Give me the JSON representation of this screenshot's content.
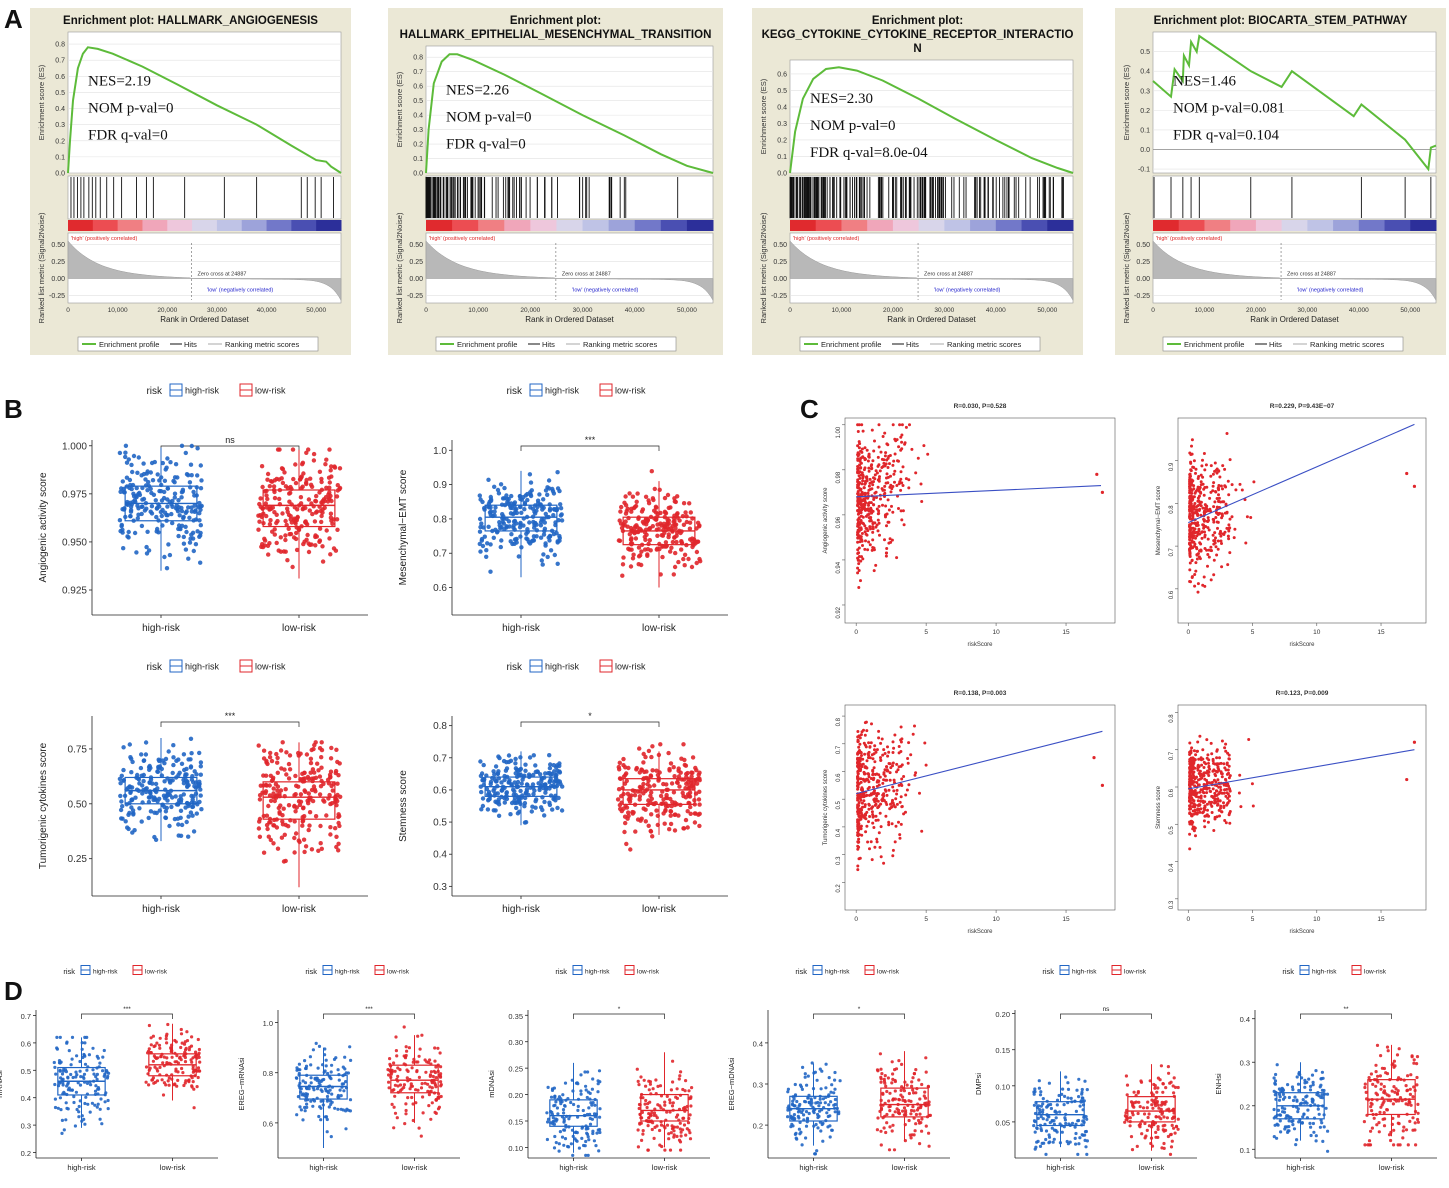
{
  "panel_labels": [
    "A",
    "B",
    "C",
    "D"
  ],
  "colors": {
    "high": "#2166c4",
    "low": "#e0262b",
    "profile": "#5dbb3a",
    "panel_bg": "#ebe8d6",
    "fit_line": "#3a4fc4",
    "scatter": "#e0262b"
  },
  "gsea_common": {
    "es_ylabel": "Enrichment score (ES)",
    "metric_ylabel": "Ranked list metric (Signal2Noise)",
    "xlabel": "Rank in Ordered Dataset",
    "high_label": "'high' (positively correlated)",
    "low_label": "'low' (negatively correlated)",
    "zero_cross": "Zero cross at 24887",
    "legend": [
      "Enrichment profile",
      "Hits",
      "Ranking metric scores"
    ],
    "x_ticks": [
      "0",
      "10,000",
      "20,000",
      "30,000",
      "40,000",
      "50,000"
    ],
    "metric_ticks": [
      "0.50",
      "0.25",
      "0.00",
      "-0.25"
    ],
    "zero_cross_rank": 24887,
    "max_rank": 55000
  },
  "chart_data": [
    {
      "type": "line",
      "panel": "A",
      "title_lines": [
        "Enrichment plot: HALLMARK_ANGIOGENESIS"
      ],
      "nes": "NES=2.19",
      "nom": "NOM p-val=0",
      "fdr": "FDR q-val=0",
      "y_ticks": [
        "0.8",
        "0.7",
        "0.6",
        "0.5",
        "0.4",
        "0.3",
        "0.2",
        "0.1",
        "0.0"
      ],
      "ylim": [
        0,
        0.85
      ],
      "es_profile": [
        [
          0,
          0
        ],
        [
          400,
          0.2
        ],
        [
          1000,
          0.45
        ],
        [
          2000,
          0.65
        ],
        [
          3000,
          0.74
        ],
        [
          4000,
          0.78
        ],
        [
          6000,
          0.77
        ],
        [
          9000,
          0.74
        ],
        [
          15000,
          0.66
        ],
        [
          22000,
          0.55
        ],
        [
          30000,
          0.42
        ],
        [
          38000,
          0.3
        ],
        [
          45000,
          0.17
        ],
        [
          50000,
          0.08
        ],
        [
          52000,
          0.07
        ],
        [
          53000,
          0.04
        ],
        [
          55000,
          0
        ]
      ],
      "hits": [
        600,
        1200,
        1900,
        2600,
        3200,
        4200,
        4900,
        5600,
        6500,
        7800,
        9200,
        10800,
        13800,
        15800,
        17200,
        23500,
        31500,
        38000,
        47000,
        48200,
        49800,
        51000,
        53500
      ],
      "nes_value": 2.19,
      "nom_p": 0,
      "fdr_q": 0
    },
    {
      "type": "line",
      "panel": "A",
      "title_lines": [
        "Enrichment plot:",
        "HALLMARK_EPITHELIAL_MESENCHYMAL_TRANSITION"
      ],
      "nes": "NES=2.26",
      "nom": "NOM p-val=0",
      "fdr": "FDR q-val=0",
      "y_ticks": [
        "0.8",
        "0.7",
        "0.6",
        "0.5",
        "0.4",
        "0.3",
        "0.2",
        "0.1",
        "0.0"
      ],
      "ylim": [
        0,
        0.85
      ],
      "es_profile": [
        [
          0,
          0
        ],
        [
          500,
          0.3
        ],
        [
          1500,
          0.62
        ],
        [
          3000,
          0.77
        ],
        [
          4500,
          0.82
        ],
        [
          6000,
          0.82
        ],
        [
          9000,
          0.78
        ],
        [
          15000,
          0.68
        ],
        [
          22000,
          0.55
        ],
        [
          30000,
          0.4
        ],
        [
          38000,
          0.26
        ],
        [
          45000,
          0.13
        ],
        [
          50000,
          0.05
        ],
        [
          55000,
          0
        ]
      ],
      "hits": "dense-early",
      "nes_value": 2.26,
      "nom_p": 0,
      "fdr_q": 0
    },
    {
      "type": "line",
      "panel": "A",
      "title_lines": [
        "Enrichment plot:",
        "KEGG_CYTOKINE_CYTOKINE_RECEPTOR_INTERACTIO",
        "N"
      ],
      "nes": "NES=2.30",
      "nom": "NOM p-val=0",
      "fdr": "FDR q-val=8.0e-04",
      "y_ticks": [
        "0.6",
        "0.5",
        "0.4",
        "0.3",
        "0.2",
        "0.1",
        "0.0"
      ],
      "ylim": [
        0,
        0.66
      ],
      "es_profile": [
        [
          0,
          0
        ],
        [
          1000,
          0.25
        ],
        [
          2500,
          0.45
        ],
        [
          4500,
          0.57
        ],
        [
          7000,
          0.63
        ],
        [
          9500,
          0.64
        ],
        [
          13000,
          0.62
        ],
        [
          18000,
          0.56
        ],
        [
          25000,
          0.45
        ],
        [
          32000,
          0.33
        ],
        [
          40000,
          0.2
        ],
        [
          47000,
          0.09
        ],
        [
          52000,
          0.03
        ],
        [
          55000,
          0
        ]
      ],
      "hits": "dense-all",
      "nes_value": 2.3,
      "nom_p": 0,
      "fdr_q": 0.0008
    },
    {
      "type": "line",
      "panel": "A",
      "title_lines": [
        "Enrichment plot: BIOCARTA_STEM_PATHWAY"
      ],
      "nes": "NES=1.46",
      "nom": "NOM p-val=0.081",
      "fdr": "FDR q-val=0.104",
      "y_ticks": [
        "0.5",
        "0.4",
        "0.3",
        "0.2",
        "0.1",
        "0.0",
        "-0.1"
      ],
      "ylim": [
        -0.12,
        0.58
      ],
      "es_profile": [
        [
          0,
          0.35
        ],
        [
          3500,
          0.27
        ],
        [
          4200,
          0.41
        ],
        [
          5800,
          0.35
        ],
        [
          6000,
          0.48
        ],
        [
          7000,
          0.43
        ],
        [
          7400,
          0.55
        ],
        [
          8500,
          0.5
        ],
        [
          9000,
          0.58
        ],
        [
          19000,
          0.4
        ],
        [
          25000,
          0.32
        ],
        [
          27000,
          0.4
        ],
        [
          39000,
          0.17
        ],
        [
          40500,
          0.23
        ],
        [
          49000,
          0.05
        ],
        [
          53500,
          -0.1
        ],
        [
          54000,
          0.01
        ],
        [
          55000,
          0.02
        ]
      ],
      "hits": [
        200,
        3500,
        5800,
        7400,
        9000,
        19000,
        27000,
        40500,
        49000,
        54000
      ],
      "nes_value": 1.46,
      "nom_p": 0.081,
      "fdr_q": 0.104
    },
    {
      "type": "box",
      "panel": "B",
      "legend_title": "risk",
      "legend": [
        "high-risk",
        "low-risk"
      ],
      "categories": [
        "high-risk",
        "low-risk"
      ],
      "ylabel": "Angiogenic activity score",
      "signif": "ns",
      "y_ticks": [
        "1.000",
        "0.975",
        "0.950",
        "0.925"
      ],
      "ylim": [
        0.912,
        1.003
      ],
      "tick_values": [
        1,
        0.975,
        0.95,
        0.925
      ],
      "stats": [
        {
          "min": 0.935,
          "q1": 0.961,
          "median": 0.97,
          "q3": 0.979,
          "max": 0.999
        },
        {
          "min": 0.931,
          "q1": 0.958,
          "median": 0.969,
          "q3": 0.977,
          "max": 0.998
        }
      ],
      "ranges": [
        [
          0.916,
          1.0
        ],
        [
          0.912,
          0.998
        ]
      ]
    },
    {
      "type": "box",
      "panel": "B",
      "legend_title": "risk",
      "legend": [
        "high-risk",
        "low-risk"
      ],
      "categories": [
        "high-risk",
        "low-risk"
      ],
      "ylabel": "Mesenchymal−EMT score",
      "signif": "***",
      "y_ticks": [
        "1.0",
        "0.9",
        "0.8",
        "0.7",
        "0.6"
      ],
      "ylim": [
        0.52,
        1.03
      ],
      "tick_values": [
        1.0,
        0.9,
        0.8,
        0.7,
        0.6
      ],
      "stats": [
        {
          "min": 0.63,
          "q1": 0.765,
          "median": 0.805,
          "q3": 0.84,
          "max": 0.94
        },
        {
          "min": 0.6,
          "q1": 0.725,
          "median": 0.765,
          "q3": 0.805,
          "max": 0.91
        }
      ],
      "ranges": [
        [
          0.57,
          0.99
        ],
        [
          0.53,
          0.95
        ]
      ]
    },
    {
      "type": "box",
      "panel": "B",
      "legend_title": "risk",
      "legend": [
        "high-risk",
        "low-risk"
      ],
      "categories": [
        "high-risk",
        "low-risk"
      ],
      "ylabel": "Tumorigenic cytokines score",
      "signif": "***",
      "y_ticks": [
        "0.75",
        "0.50",
        "0.25"
      ],
      "ylim": [
        0.08,
        0.9
      ],
      "tick_values": [
        0.75,
        0.5,
        0.25
      ],
      "stats": [
        {
          "min": 0.33,
          "q1": 0.5,
          "median": 0.56,
          "q3": 0.62,
          "max": 0.8
        },
        {
          "min": 0.12,
          "q1": 0.43,
          "median": 0.53,
          "q3": 0.6,
          "max": 0.78
        }
      ],
      "ranges": [
        [
          0.26,
          0.82
        ],
        [
          0.1,
          0.78
        ]
      ]
    },
    {
      "type": "box",
      "panel": "B",
      "legend_title": "risk",
      "legend": [
        "high-risk",
        "low-risk"
      ],
      "categories": [
        "high-risk",
        "low-risk"
      ],
      "ylabel": "Stemness score",
      "signif": "*",
      "y_ticks": [
        "0.8",
        "0.7",
        "0.6",
        "0.5",
        "0.4",
        "0.3"
      ],
      "ylim": [
        0.27,
        0.83
      ],
      "tick_values": [
        0.8,
        0.7,
        0.6,
        0.5,
        0.4,
        0.3
      ],
      "stats": [
        {
          "min": 0.49,
          "q1": 0.58,
          "median": 0.61,
          "q3": 0.64,
          "max": 0.72
        },
        {
          "min": 0.46,
          "q1": 0.555,
          "median": 0.6,
          "q3": 0.635,
          "max": 0.72
        }
      ],
      "ranges": [
        [
          0.47,
          0.79
        ],
        [
          0.28,
          0.76
        ]
      ]
    },
    {
      "type": "scatter",
      "panel": "C",
      "title": "R=0.030, P=0.528",
      "xlabel": "riskScore",
      "ylabel": "Angiogenic activity score",
      "x_ticks": [
        "0",
        "5",
        "10",
        "15"
      ],
      "y_ticks": [
        "1.00",
        "0.98",
        "0.96",
        "0.94",
        "0.92"
      ],
      "tick_values": [
        1.0,
        0.98,
        0.96,
        0.94,
        0.92
      ],
      "xlim": [
        -0.8,
        18.5
      ],
      "ylim": [
        0.912,
        1.003
      ],
      "center": 0.968,
      "spread": 0.014,
      "lo": 0.915,
      "hi": 1.0,
      "fit": [
        [
          0,
          0.968
        ],
        [
          17.5,
          0.973
        ]
      ],
      "outliers": [
        [
          17.2,
          0.978
        ],
        [
          17.6,
          0.97
        ]
      ]
    },
    {
      "type": "scatter",
      "panel": "C",
      "title": "R=0.229, P=9.43E−07",
      "xlabel": "riskScore",
      "ylabel": "Mesenchymal−EMT score",
      "x_ticks": [
        "0",
        "5",
        "10",
        "15"
      ],
      "y_ticks": [
        "0.9",
        "0.8",
        "0.7",
        "0.6"
      ],
      "tick_values": [
        0.9,
        0.8,
        0.7,
        0.6
      ],
      "xlim": [
        -0.8,
        18.5
      ],
      "ylim": [
        0.52,
        1.0
      ],
      "center": 0.775,
      "spread": 0.065,
      "lo": 0.53,
      "hi": 0.98,
      "fit": [
        [
          0,
          0.755
        ],
        [
          17.6,
          0.985
        ]
      ],
      "outliers": [
        [
          17.0,
          0.87
        ],
        [
          17.6,
          0.84
        ]
      ]
    },
    {
      "type": "scatter",
      "panel": "C",
      "title": "R=0.138, P=0.003",
      "xlabel": "riskScore",
      "ylabel": "Tumorigenic cytokines score",
      "x_ticks": [
        "0",
        "5",
        "10",
        "15"
      ],
      "y_ticks": [
        "0.8",
        "0.7",
        "0.6",
        "0.5",
        "0.4",
        "0.3",
        "0.2"
      ],
      "tick_values": [
        0.8,
        0.7,
        0.6,
        0.5,
        0.4,
        0.3,
        0.2
      ],
      "xlim": [
        -0.8,
        18.5
      ],
      "ylim": [
        0.1,
        0.84
      ],
      "center": 0.54,
      "spread": 0.11,
      "lo": 0.12,
      "hi": 0.82,
      "fit": [
        [
          0,
          0.52
        ],
        [
          17.6,
          0.745
        ]
      ],
      "outliers": [
        [
          17.0,
          0.65
        ],
        [
          17.6,
          0.55
        ]
      ]
    },
    {
      "type": "scatter",
      "panel": "C",
      "title": "R=0.123, P=0.009",
      "xlabel": "riskScore",
      "ylabel": "Stemness score",
      "x_ticks": [
        "0",
        "5",
        "10",
        "15"
      ],
      "y_ticks": [
        "0.8",
        "0.7",
        "0.6",
        "0.5",
        "0.4",
        "0.3"
      ],
      "tick_values": [
        0.8,
        0.7,
        0.6,
        0.5,
        0.4,
        0.3
      ],
      "xlim": [
        -0.8,
        18.5
      ],
      "ylim": [
        0.27,
        0.82
      ],
      "center": 0.6,
      "spread": 0.055,
      "lo": 0.29,
      "hi": 0.79,
      "fit": [
        [
          0,
          0.595
        ],
        [
          17.6,
          0.7
        ]
      ],
      "outliers": [
        [
          17.0,
          0.62
        ],
        [
          17.6,
          0.72
        ]
      ]
    },
    {
      "type": "box",
      "panel": "D",
      "legend_title": "risk",
      "legend": [
        "high-risk",
        "low-risk"
      ],
      "categories": [
        "high-risk",
        "low-risk"
      ],
      "ylabel": "mRNAsi",
      "signif": "***",
      "y_ticks": [
        "0.7",
        "0.6",
        "0.5",
        "0.4",
        "0.3",
        "0.2"
      ],
      "ylim": [
        0.18,
        0.72
      ],
      "tick_values": [
        0.7,
        0.6,
        0.5,
        0.4,
        0.3,
        0.2
      ],
      "stats": [
        {
          "min": 0.29,
          "q1": 0.41,
          "median": 0.46,
          "q3": 0.51,
          "max": 0.62
        },
        {
          "min": 0.39,
          "q1": 0.48,
          "median": 0.52,
          "q3": 0.56,
          "max": 0.67
        }
      ],
      "ranges": [
        [
          0.19,
          0.62
        ],
        [
          0.3,
          0.68
        ]
      ]
    },
    {
      "type": "box",
      "panel": "D",
      "legend_title": "risk",
      "legend": [
        "high-risk",
        "low-risk"
      ],
      "categories": [
        "high-risk",
        "low-risk"
      ],
      "ylabel": "EREG−mRNAsi",
      "signif": "***",
      "y_ticks": [
        "1.0",
        "0.8",
        "0.6"
      ],
      "ylim": [
        0.46,
        1.05
      ],
      "tick_values": [
        1.0,
        0.8,
        0.6
      ],
      "stats": [
        {
          "min": 0.5,
          "q1": 0.695,
          "median": 0.745,
          "q3": 0.79,
          "max": 0.9
        },
        {
          "min": 0.6,
          "q1": 0.72,
          "median": 0.77,
          "q3": 0.83,
          "max": 0.95
        }
      ],
      "ranges": [
        [
          0.48,
          0.95
        ],
        [
          0.48,
          1.0
        ]
      ]
    },
    {
      "type": "box",
      "panel": "D",
      "legend_title": "risk",
      "legend": [
        "high-risk",
        "low-risk"
      ],
      "categories": [
        "high-risk",
        "low-risk"
      ],
      "ylabel": "mDNAsi",
      "signif": "*",
      "y_ticks": [
        "0.35",
        "0.30",
        "0.25",
        "0.20",
        "0.15",
        "0.10"
      ],
      "ylim": [
        0.08,
        0.36
      ],
      "tick_values": [
        0.35,
        0.3,
        0.25,
        0.2,
        0.15,
        0.1
      ],
      "stats": [
        {
          "min": 0.09,
          "q1": 0.14,
          "median": 0.16,
          "q3": 0.19,
          "max": 0.26
        },
        {
          "min": 0.1,
          "q1": 0.15,
          "median": 0.17,
          "q3": 0.2,
          "max": 0.28
        }
      ],
      "ranges": [
        [
          0.085,
          0.29
        ],
        [
          0.095,
          0.32
        ]
      ]
    },
    {
      "type": "box",
      "panel": "D",
      "legend_title": "risk",
      "legend": [
        "high-risk",
        "low-risk"
      ],
      "categories": [
        "high-risk",
        "low-risk"
      ],
      "ylabel": "EREG−mDNAsi",
      "signif": "*",
      "y_ticks": [
        "0.4",
        "0.3",
        "0.2"
      ],
      "ylim": [
        0.12,
        0.48
      ],
      "tick_values": [
        0.4,
        0.3,
        0.2
      ],
      "stats": [
        {
          "min": 0.15,
          "q1": 0.21,
          "median": 0.24,
          "q3": 0.27,
          "max": 0.35
        },
        {
          "min": 0.16,
          "q1": 0.22,
          "median": 0.25,
          "q3": 0.29,
          "max": 0.38
        }
      ],
      "ranges": [
        [
          0.13,
          0.38
        ],
        [
          0.14,
          0.46
        ]
      ]
    },
    {
      "type": "box",
      "panel": "D",
      "legend_title": "risk",
      "legend": [
        "high-risk",
        "low-risk"
      ],
      "categories": [
        "high-risk",
        "low-risk"
      ],
      "ylabel": "DMPsi",
      "signif": "ns",
      "y_ticks": [
        "0.20",
        "0.15",
        "0.10",
        "0.05"
      ],
      "ylim": [
        0.0,
        0.205
      ],
      "tick_values": [
        0.2,
        0.15,
        0.1,
        0.05
      ],
      "stats": [
        {
          "min": 0.015,
          "q1": 0.045,
          "median": 0.06,
          "q3": 0.078,
          "max": 0.12
        },
        {
          "min": 0.01,
          "q1": 0.05,
          "median": 0.065,
          "q3": 0.085,
          "max": 0.13
        }
      ],
      "ranges": [
        [
          0.005,
          0.175
        ],
        [
          0.005,
          0.19
        ]
      ]
    },
    {
      "type": "box",
      "panel": "D",
      "legend_title": "risk",
      "legend": [
        "high-risk",
        "low-risk"
      ],
      "categories": [
        "high-risk",
        "low-risk"
      ],
      "ylabel": "ENHsi",
      "signif": "**",
      "y_ticks": [
        "0.4",
        "0.3",
        "0.2",
        "0.1"
      ],
      "ylim": [
        0.08,
        0.42
      ],
      "tick_values": [
        0.4,
        0.3,
        0.2,
        0.1
      ],
      "stats": [
        {
          "min": 0.12,
          "q1": 0.17,
          "median": 0.2,
          "q3": 0.23,
          "max": 0.3
        },
        {
          "min": 0.13,
          "q1": 0.18,
          "median": 0.215,
          "q3": 0.26,
          "max": 0.34
        }
      ],
      "ranges": [
        [
          0.09,
          0.35
        ],
        [
          0.11,
          0.4
        ]
      ]
    }
  ]
}
